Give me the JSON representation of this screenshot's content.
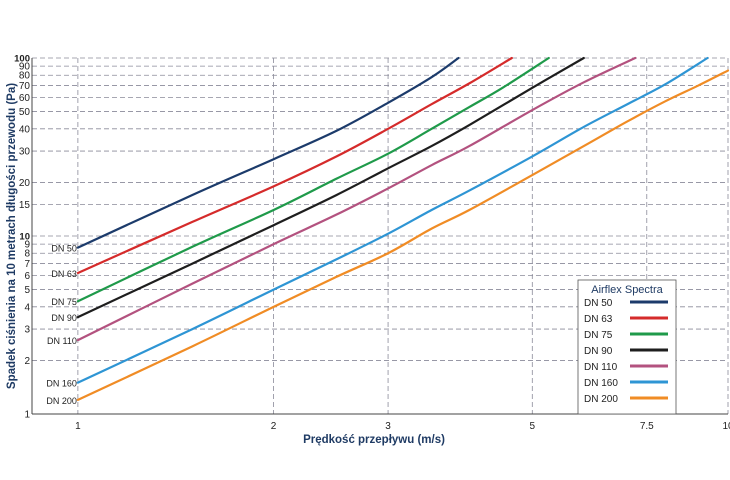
{
  "chart_data": {
    "type": "line",
    "title": "",
    "xlabel": "Prędkość przepływu (m/s)",
    "ylabel": "Spadek ciśnienia na 10 metrach długości przewodu (Pa)",
    "x_scale": "log",
    "y_scale": "log",
    "xlim": [
      0.85,
      10
    ],
    "ylim": [
      1,
      100
    ],
    "x_ticks": [
      1,
      2,
      3,
      5,
      7.5,
      10
    ],
    "x_tick_labels": [
      "1",
      "2",
      "3",
      "5",
      "7.5",
      "10"
    ],
    "y_ticks": [
      1,
      2,
      3,
      4,
      5,
      6,
      7,
      8,
      9,
      10,
      15,
      20,
      30,
      40,
      50,
      60,
      70,
      80,
      90,
      100
    ],
    "y_tick_labels": [
      "1",
      "2",
      "3",
      "4",
      "5",
      "6",
      "7",
      "8",
      "9",
      "10",
      "15",
      "20",
      "30",
      "40",
      "50",
      "60",
      "70",
      "80",
      "90",
      "100"
    ],
    "y_ticks_bold": [
      10,
      100
    ],
    "grid": true,
    "legend": {
      "title": "Airflex Spectra",
      "placement": "bottom-right"
    },
    "series": [
      {
        "name": "DN 50",
        "color": "#1c3b6b",
        "x": [
          1,
          1.5,
          2,
          2.5,
          3,
          3.5,
          3.85
        ],
        "y": [
          8.6,
          17,
          27,
          39,
          56,
          78,
          100
        ]
      },
      {
        "name": "DN 63",
        "color": "#d52b2b",
        "x": [
          1,
          1.5,
          2,
          2.5,
          3,
          3.5,
          4,
          4.65
        ],
        "y": [
          6.2,
          12,
          19,
          28,
          40,
          55,
          72,
          100
        ]
      },
      {
        "name": "DN 75",
        "color": "#1f9a4a",
        "x": [
          1,
          1.5,
          2,
          2.5,
          3,
          3.5,
          4,
          4.5,
          5.3
        ],
        "y": [
          4.3,
          8.7,
          14,
          21,
          29,
          40,
          53,
          68,
          100
        ]
      },
      {
        "name": "DN 90",
        "color": "#1e1e1e",
        "x": [
          1,
          1.5,
          2,
          2.5,
          3,
          3.5,
          4,
          5,
          6
        ],
        "y": [
          3.5,
          7,
          11.5,
          17,
          24,
          32,
          42,
          68,
          100
        ]
      },
      {
        "name": "DN 110",
        "color": "#b3527f",
        "x": [
          1,
          1.5,
          2,
          2.5,
          3,
          3.5,
          4,
          5,
          6,
          7.2
        ],
        "y": [
          2.6,
          5.4,
          9,
          13.2,
          18.5,
          25,
          32,
          51,
          73,
          100
        ]
      },
      {
        "name": "DN 160",
        "color": "#2e95d4",
        "x": [
          1,
          1.5,
          2,
          2.5,
          3,
          3.5,
          4,
          5,
          6,
          7,
          8,
          9.3
        ],
        "y": [
          1.5,
          3,
          5,
          7.4,
          10.3,
          14,
          18,
          28,
          41,
          55,
          71,
          100
        ]
      },
      {
        "name": "DN 200",
        "color": "#f08c25",
        "x": [
          1,
          1.5,
          2,
          2.5,
          3,
          3.5,
          4,
          5,
          6,
          7,
          8,
          9,
          10
        ],
        "y": [
          1.2,
          2.4,
          4,
          5.9,
          8,
          11,
          14,
          22,
          32,
          44,
          57,
          70,
          85
        ]
      }
    ]
  }
}
